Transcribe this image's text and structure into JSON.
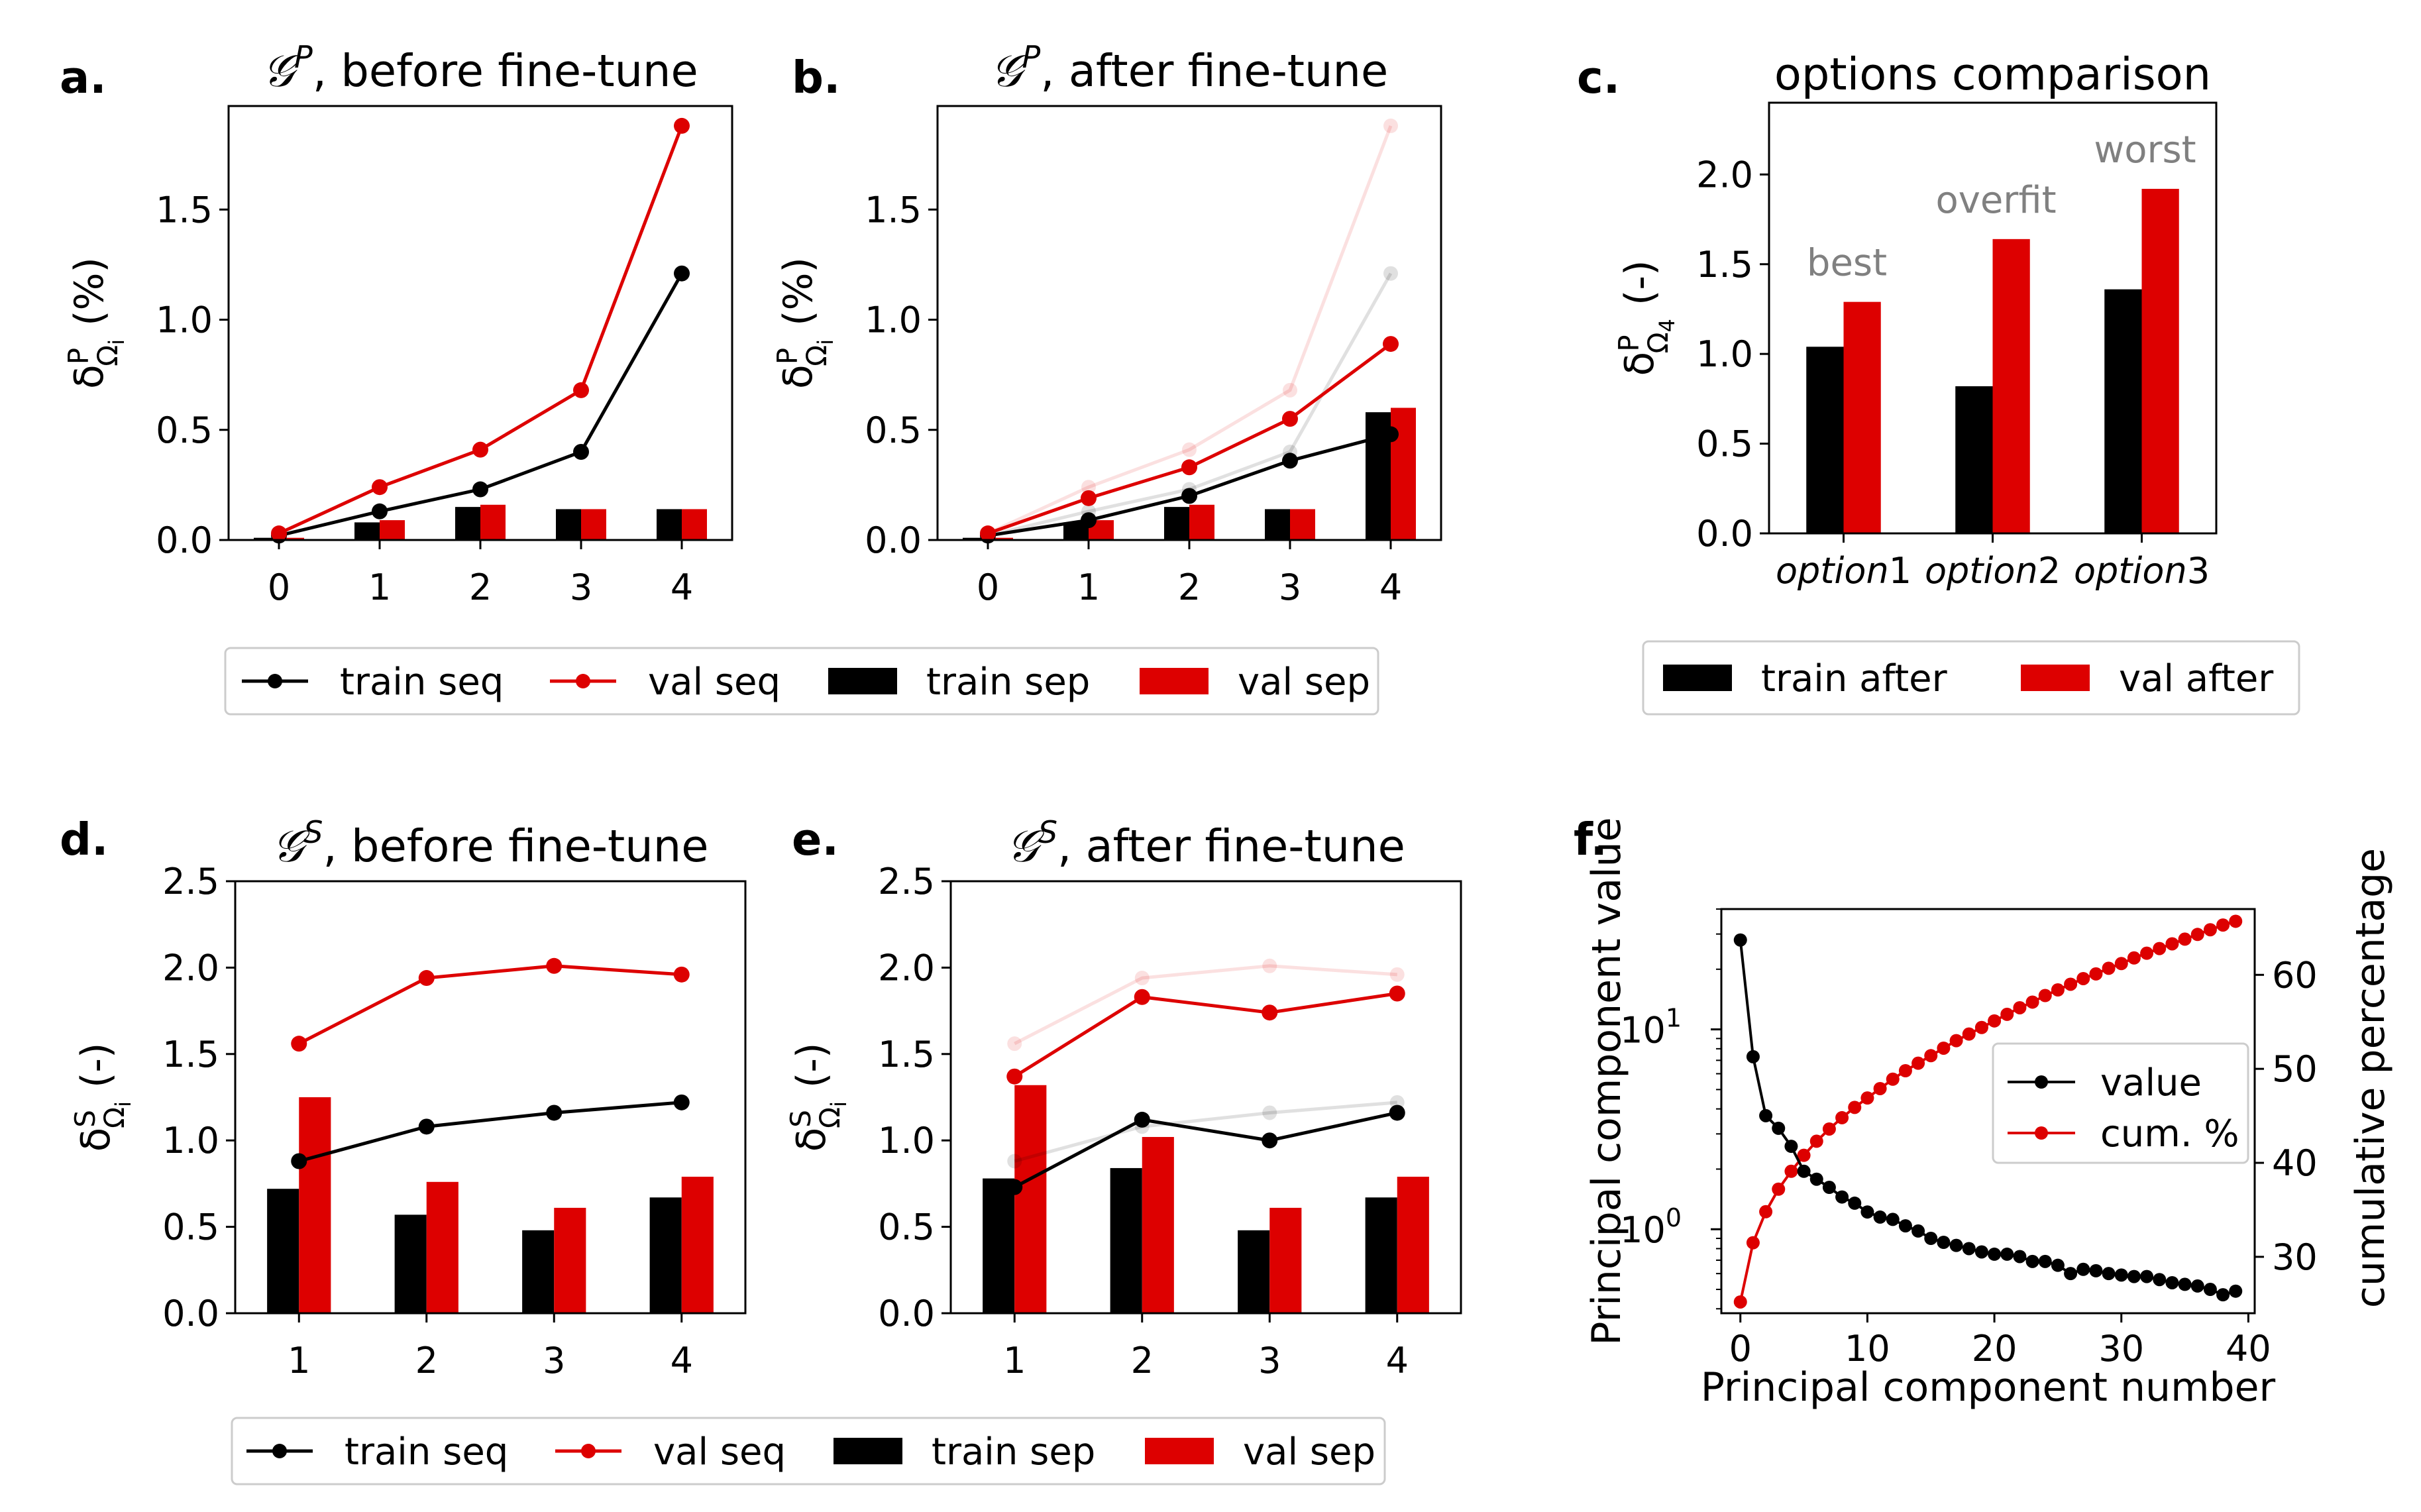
{
  "colors": {
    "train": "#000000",
    "val": "#dd0000",
    "grid_axes": "#000000",
    "annotation": "#808080",
    "legend_border": "#cccccc"
  },
  "chart_data": [
    {
      "id": "a",
      "panel_label": "a.",
      "type": "bar+line",
      "title": "𝒢",
      "title_sup": "P",
      "title_rest": ", before fine-tune",
      "ylabel": "δ",
      "ylabel_sup": "P",
      "ylabel_sub": "Ω",
      "ylabel_subsub": "i",
      "ylabel_unit": "(%)",
      "xlim": [
        -0.5,
        4.5
      ],
      "ylim": [
        0,
        1.97
      ],
      "xticks": [
        "0",
        "1",
        "2",
        "3",
        "4"
      ],
      "yticks": [
        "0.0",
        "0.5",
        "1.0",
        "1.5"
      ],
      "x": [
        0,
        1,
        2,
        3,
        4
      ],
      "bars": [
        {
          "name": "train sep",
          "values": [
            0.01,
            0.08,
            0.15,
            0.14,
            0.14
          ]
        },
        {
          "name": "val sep",
          "values": [
            0.01,
            0.09,
            0.16,
            0.14,
            0.14
          ]
        }
      ],
      "lines": [
        {
          "name": "train seq",
          "values": [
            0.02,
            0.13,
            0.23,
            0.4,
            1.21
          ]
        },
        {
          "name": "val seq",
          "values": [
            0.03,
            0.24,
            0.41,
            0.68,
            1.88
          ]
        }
      ],
      "ghost_lines": []
    },
    {
      "id": "b",
      "panel_label": "b.",
      "type": "bar+line",
      "title": "𝒢",
      "title_sup": "P",
      "title_rest": ", after fine-tune",
      "ylabel": "δ",
      "ylabel_sup": "P",
      "ylabel_sub": "Ω",
      "ylabel_subsub": "i",
      "ylabel_unit": "(%)",
      "xlim": [
        -0.5,
        4.5
      ],
      "ylim": [
        0,
        1.97
      ],
      "xticks": [
        "0",
        "1",
        "2",
        "3",
        "4"
      ],
      "yticks": [
        "0.0",
        "0.5",
        "1.0",
        "1.5"
      ],
      "x": [
        0,
        1,
        2,
        3,
        4
      ],
      "bars": [
        {
          "name": "train sep",
          "values": [
            0.01,
            0.08,
            0.15,
            0.14,
            0.58
          ]
        },
        {
          "name": "val sep",
          "values": [
            0.01,
            0.09,
            0.16,
            0.14,
            0.6
          ]
        }
      ],
      "lines": [
        {
          "name": "train seq",
          "values": [
            0.02,
            0.09,
            0.2,
            0.36,
            0.48
          ]
        },
        {
          "name": "val seq",
          "values": [
            0.03,
            0.19,
            0.33,
            0.55,
            0.89
          ]
        }
      ],
      "ghost_lines": [
        {
          "name": "train seq before",
          "values": [
            0.02,
            0.13,
            0.23,
            0.4,
            1.21
          ]
        },
        {
          "name": "val seq before",
          "values": [
            0.03,
            0.24,
            0.41,
            0.68,
            1.88
          ]
        }
      ]
    },
    {
      "id": "c",
      "panel_label": "c.",
      "type": "bar",
      "title": "options comparison",
      "ylabel": "δ",
      "ylabel_sup": "P",
      "ylabel_sub": "Ω",
      "ylabel_subsub": "4",
      "ylabel_unit": "(-)",
      "ylim": [
        0,
        2.4
      ],
      "categories": [
        "option1",
        "option2",
        "option3"
      ],
      "yticks": [
        "0.0",
        "0.5",
        "1.0",
        "1.5",
        "2.0"
      ],
      "series": [
        {
          "name": "train after",
          "values": [
            1.04,
            0.82,
            1.36
          ]
        },
        {
          "name": "val after",
          "values": [
            1.29,
            1.64,
            1.92
          ]
        }
      ],
      "annotations": [
        "best",
        "overfit",
        "worst"
      ]
    },
    {
      "id": "d",
      "panel_label": "d.",
      "type": "bar+line",
      "title": "𝒢",
      "title_sup": "S",
      "title_rest": ", before fine-tune",
      "ylabel": "δ",
      "ylabel_sup": "S",
      "ylabel_sub": "Ω",
      "ylabel_subsub": "i",
      "ylabel_unit": "(-)",
      "xlim": [
        0.5,
        4.5
      ],
      "ylim": [
        0,
        2.5
      ],
      "xticks": [
        "1",
        "2",
        "3",
        "4"
      ],
      "yticks": [
        "0.0",
        "0.5",
        "1.0",
        "1.5",
        "2.0",
        "2.5"
      ],
      "x": [
        1,
        2,
        3,
        4
      ],
      "bars": [
        {
          "name": "train sep",
          "values": [
            0.72,
            0.57,
            0.48,
            0.67
          ]
        },
        {
          "name": "val sep",
          "values": [
            1.25,
            0.76,
            0.61,
            0.79
          ]
        }
      ],
      "lines": [
        {
          "name": "train seq",
          "values": [
            0.88,
            1.08,
            1.16,
            1.22
          ]
        },
        {
          "name": "val seq",
          "values": [
            1.56,
            1.94,
            2.01,
            1.96
          ]
        }
      ],
      "ghost_lines": []
    },
    {
      "id": "e",
      "panel_label": "e.",
      "type": "bar+line",
      "title": "𝒢",
      "title_sup": "S",
      "title_rest": ", after fine-tune",
      "ylabel": "δ",
      "ylabel_sup": "S",
      "ylabel_sub": "Ω",
      "ylabel_subsub": "i",
      "ylabel_unit": "(-)",
      "xlim": [
        0.5,
        4.5
      ],
      "ylim": [
        0,
        2.5
      ],
      "xticks": [
        "1",
        "2",
        "3",
        "4"
      ],
      "yticks": [
        "0.0",
        "0.5",
        "1.0",
        "1.5",
        "2.0",
        "2.5"
      ],
      "x": [
        1,
        2,
        3,
        4
      ],
      "bars": [
        {
          "name": "train sep",
          "values": [
            0.78,
            0.84,
            0.48,
            0.67
          ]
        },
        {
          "name": "val sep",
          "values": [
            1.32,
            1.02,
            0.61,
            0.79
          ]
        }
      ],
      "lines": [
        {
          "name": "train seq",
          "values": [
            0.73,
            1.12,
            1.0,
            1.16
          ]
        },
        {
          "name": "val seq",
          "values": [
            1.37,
            1.83,
            1.74,
            1.85
          ]
        }
      ],
      "ghost_lines": [
        {
          "name": "train seq before",
          "values": [
            0.88,
            1.08,
            1.16,
            1.22
          ]
        },
        {
          "name": "val seq before",
          "values": [
            1.56,
            1.94,
            2.01,
            1.96
          ]
        }
      ]
    },
    {
      "id": "f",
      "panel_label": "f.",
      "type": "line",
      "xlabel": "Principal component number",
      "ylabel": "Principal component value",
      "y2label": "cumulative percentage",
      "xlim": [
        -1.5,
        40.5
      ],
      "xticks": [
        "0",
        "10",
        "20",
        "30",
        "40"
      ],
      "yscale": "log",
      "ylim": [
        0.38,
        40
      ],
      "yticks": [
        "10",
        "10"
      ],
      "ytick_exps": [
        "0",
        "1"
      ],
      "y2lim": [
        24,
        67
      ],
      "y2ticks": [
        "30",
        "40",
        "50",
        "60"
      ],
      "legend": [
        "value",
        "cum. %"
      ],
      "x": [
        0,
        1,
        2,
        3,
        4,
        5,
        6,
        7,
        8,
        9,
        10,
        11,
        12,
        13,
        14,
        15,
        16,
        17,
        18,
        19,
        20,
        21,
        22,
        23,
        24,
        25,
        26,
        27,
        28,
        29,
        30,
        31,
        32,
        33,
        34,
        35,
        36,
        37,
        38,
        39
      ],
      "series": [
        {
          "name": "value",
          "values": [
            28,
            7.3,
            3.7,
            3.2,
            2.6,
            1.95,
            1.78,
            1.62,
            1.45,
            1.35,
            1.22,
            1.15,
            1.12,
            1.04,
            0.98,
            0.9,
            0.86,
            0.83,
            0.8,
            0.77,
            0.75,
            0.75,
            0.73,
            0.69,
            0.69,
            0.66,
            0.6,
            0.63,
            0.62,
            0.6,
            0.59,
            0.58,
            0.58,
            0.56,
            0.54,
            0.53,
            0.52,
            0.5,
            0.47,
            0.49
          ]
        },
        {
          "name": "cum. %",
          "values": [
            25.2,
            31.5,
            34.8,
            37.2,
            39.1,
            40.8,
            42.3,
            43.6,
            44.8,
            45.9,
            46.9,
            47.9,
            48.9,
            49.8,
            50.6,
            51.4,
            52.2,
            53.0,
            53.7,
            54.4,
            55.1,
            55.8,
            56.5,
            57.1,
            57.8,
            58.4,
            59.0,
            59.6,
            60.1,
            60.7,
            61.2,
            61.8,
            62.3,
            62.8,
            63.3,
            63.8,
            64.3,
            64.8,
            65.3,
            65.7
          ]
        }
      ]
    }
  ],
  "legends": {
    "ab": [
      "train seq",
      "val seq",
      "train sep",
      "val sep"
    ],
    "c": [
      "train after",
      "val after"
    ],
    "de": [
      "train seq",
      "val seq",
      "train sep",
      "val sep"
    ]
  }
}
